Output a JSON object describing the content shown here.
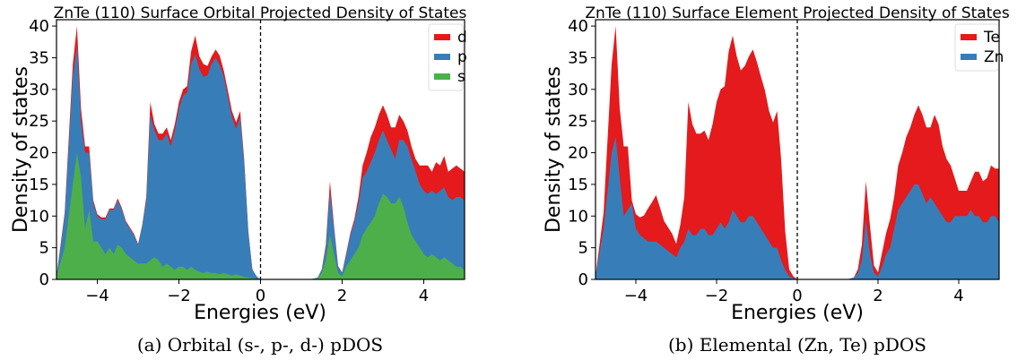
{
  "colors": {
    "d": "#e41a1c",
    "p": "#377eb8",
    "s": "#4daf4a"
  },
  "chart_data": [
    {
      "type": "area",
      "stacked": true,
      "title": "ZnTe (110) Surface Orbital Projected Density of States",
      "caption": "(a) Orbital (s-, p-, d-) pDOS",
      "xlabel": "Energies (eV)",
      "ylabel": "Density of states",
      "xlim": [
        -5,
        5
      ],
      "ylim": [
        0,
        41
      ],
      "xticks": [
        -4,
        -2,
        0,
        2,
        4
      ],
      "xtick_labels": [
        "−4",
        "−2",
        "0",
        "2",
        "4"
      ],
      "yticks": [
        0,
        5,
        10,
        15,
        20,
        25,
        30,
        35,
        40
      ],
      "fermi_level": 0,
      "legend_position": "top-right",
      "x": [
        -5,
        -4.8,
        -4.6,
        -4.5,
        -4.4,
        -4.3,
        -4.2,
        -4.1,
        -4,
        -3.9,
        -3.8,
        -3.7,
        -3.6,
        -3.5,
        -3.4,
        -3.3,
        -3.2,
        -3.1,
        -3,
        -2.9,
        -2.8,
        -2.7,
        -2.6,
        -2.5,
        -2.4,
        -2.3,
        -2.2,
        -2.1,
        -2,
        -1.9,
        -1.8,
        -1.7,
        -1.6,
        -1.5,
        -1.4,
        -1.3,
        -1.2,
        -1.1,
        -1,
        -0.9,
        -0.8,
        -0.7,
        -0.6,
        -0.5,
        -0.4,
        -0.3,
        -0.2,
        -0.1,
        0,
        0.2,
        0.4,
        0.6,
        0.8,
        1,
        1.1,
        1.2,
        1.3,
        1.4,
        1.5,
        1.6,
        1.7,
        1.8,
        1.9,
        2,
        2.1,
        2.2,
        2.3,
        2.4,
        2.5,
        2.6,
        2.7,
        2.8,
        2.9,
        3,
        3.1,
        3.2,
        3.3,
        3.4,
        3.5,
        3.6,
        3.7,
        3.8,
        3.9,
        4,
        4.1,
        4.2,
        4.3,
        4.4,
        4.5,
        4.6,
        4.7,
        4.8,
        4.9,
        5
      ],
      "series": [
        {
          "name": "s",
          "values": [
            0.5,
            5,
            15,
            20,
            16,
            8,
            11,
            6,
            6,
            5,
            4,
            5,
            4,
            5.5,
            5,
            4,
            3.5,
            3,
            2.5,
            2.5,
            2.5,
            3,
            3.5,
            3,
            2,
            2.5,
            2,
            1.5,
            2,
            2,
            1.5,
            2,
            1.5,
            1.2,
            1,
            1.2,
            1,
            1,
            0.8,
            1,
            0.8,
            0.6,
            0.8,
            0.6,
            0.4,
            0.3,
            0.2,
            0.1,
            0,
            0,
            0,
            0,
            0,
            0,
            0,
            0,
            0.1,
            0.2,
            1,
            3,
            7,
            4,
            1,
            0.5,
            2,
            3,
            4,
            5,
            7,
            8,
            9,
            10,
            12,
            13.5,
            13,
            12,
            12,
            13,
            11.5,
            9,
            7,
            6,
            5,
            4,
            3.5,
            4,
            3.5,
            3,
            3.5,
            3,
            2.5,
            2,
            2,
            1.5
          ]
        },
        {
          "name": "p",
          "values": [
            0,
            5,
            17,
            17,
            9,
            12,
            9,
            6,
            4,
            4.5,
            5.5,
            6,
            7,
            7,
            6,
            5,
            4.5,
            4,
            3,
            6,
            10,
            23,
            20,
            19,
            20,
            20.5,
            19,
            22,
            25,
            27,
            28,
            32,
            34,
            32,
            31,
            31,
            33,
            34,
            33,
            31,
            28,
            25,
            23,
            25,
            18,
            7,
            1.3,
            0.4,
            0,
            0,
            0,
            0,
            0,
            0,
            0,
            0,
            0,
            0.1,
            0.5,
            2,
            7,
            4,
            1,
            0.5,
            2,
            4,
            5,
            7,
            9,
            9,
            9.5,
            10,
            10,
            10,
            9,
            8.5,
            7,
            9,
            10.5,
            12,
            12,
            11,
            10,
            10,
            10,
            10,
            10,
            11,
            11,
            10,
            10,
            11,
            11,
            11
          ]
        },
        {
          "name": "d",
          "values": [
            0,
            0.5,
            2,
            3,
            2,
            1,
            1,
            0.5,
            0.3,
            0.3,
            0.3,
            0.2,
            0.2,
            0.3,
            0.3,
            0.2,
            0.2,
            0.2,
            0.1,
            0.1,
            0.5,
            2,
            1,
            1,
            1,
            1,
            1,
            1,
            1,
            1,
            1,
            2,
            3,
            2,
            2,
            1.5,
            1.2,
            1.3,
            1.5,
            1,
            1,
            1,
            1,
            1,
            0.5,
            0.3,
            0.1,
            0,
            0,
            0,
            0,
            0,
            0,
            0,
            0,
            0,
            0,
            0,
            0.1,
            0.5,
            1.5,
            0.5,
            0.1,
            0.1,
            0.2,
            0.3,
            0.5,
            1,
            2,
            3,
            4,
            4,
            4,
            4,
            4,
            3.5,
            5,
            4,
            3,
            2.5,
            2,
            2,
            3,
            4,
            4.5,
            3,
            5,
            4,
            5,
            4,
            5,
            5,
            4.5,
            4.5
          ]
        }
      ]
    },
    {
      "type": "area",
      "stacked": true,
      "title": "ZnTe (110) Surface Element Projected Density of States",
      "caption": "(b) Elemental (Zn, Te) pDOS",
      "xlabel": "Energies (eV)",
      "ylabel": "Density of states",
      "xlim": [
        -5,
        5
      ],
      "ylim": [
        0,
        41
      ],
      "xticks": [
        -4,
        -2,
        0,
        2,
        4
      ],
      "xtick_labels": [
        "−4",
        "−2",
        "0",
        "2",
        "4"
      ],
      "yticks": [
        0,
        5,
        10,
        15,
        20,
        25,
        30,
        35,
        40
      ],
      "fermi_level": 0,
      "legend_position": "top-right",
      "x": [
        -5,
        -4.8,
        -4.6,
        -4.5,
        -4.4,
        -4.3,
        -4.2,
        -4.1,
        -4,
        -3.9,
        -3.8,
        -3.7,
        -3.6,
        -3.5,
        -3.4,
        -3.3,
        -3.2,
        -3.1,
        -3,
        -2.9,
        -2.8,
        -2.7,
        -2.6,
        -2.5,
        -2.4,
        -2.3,
        -2.2,
        -2.1,
        -2,
        -1.9,
        -1.8,
        -1.7,
        -1.6,
        -1.5,
        -1.4,
        -1.3,
        -1.2,
        -1.1,
        -1,
        -0.9,
        -0.8,
        -0.7,
        -0.6,
        -0.5,
        -0.4,
        -0.3,
        -0.2,
        -0.1,
        0,
        0.2,
        0.4,
        0.6,
        0.8,
        1,
        1.1,
        1.2,
        1.3,
        1.4,
        1.5,
        1.6,
        1.7,
        1.8,
        1.9,
        2,
        2.1,
        2.2,
        2.3,
        2.4,
        2.5,
        2.6,
        2.7,
        2.8,
        2.9,
        3,
        3.1,
        3.2,
        3.3,
        3.4,
        3.5,
        3.6,
        3.7,
        3.8,
        3.9,
        4,
        4.1,
        4.2,
        4.3,
        4.4,
        4.5,
        4.6,
        4.7,
        4.8,
        4.9,
        5
      ],
      "series": [
        {
          "name": "Zn",
          "values": [
            0.5,
            8,
            20,
            22.5,
            16,
            10,
            11,
            12,
            8,
            7,
            6.5,
            6,
            6,
            6,
            5.5,
            5,
            4.5,
            4,
            3.5,
            5,
            6,
            8,
            7,
            7,
            8,
            8,
            7,
            7,
            8,
            9,
            8,
            9,
            11,
            10,
            9,
            9,
            10,
            10,
            9,
            8,
            7,
            6,
            5,
            5,
            3,
            1.5,
            0.5,
            0.2,
            0,
            0,
            0,
            0,
            0,
            0,
            0,
            0,
            0.1,
            0.3,
            1,
            3,
            9.5,
            4,
            1,
            0.5,
            2,
            4,
            5,
            8,
            11,
            12,
            13,
            14,
            15,
            15,
            13.5,
            12,
            13,
            12,
            11,
            10,
            9,
            9,
            10,
            10,
            10,
            10,
            11,
            10,
            10,
            9,
            9,
            10,
            10,
            9
          ]
        },
        {
          "name": "Te",
          "values": [
            0,
            2.5,
            14,
            17.5,
            11,
            11,
            10,
            0.5,
            2.3,
            2.8,
            3.6,
            5.2,
            6.2,
            7.3,
            5.8,
            4.2,
            3.7,
            3.2,
            2.1,
            3.6,
            7,
            20,
            17.5,
            16,
            15,
            15.5,
            15,
            17.5,
            20,
            21,
            22.5,
            27,
            27.5,
            25.2,
            24,
            24.7,
            25.2,
            26.3,
            25.3,
            24,
            22.8,
            20.6,
            19.8,
            21.6,
            15.9,
            6.1,
            1.1,
            0.3,
            0,
            0,
            0,
            0,
            0,
            0,
            0,
            0,
            0,
            0,
            0.6,
            2.5,
            6,
            4.5,
            1.2,
            0.6,
            2.2,
            3.3,
            4.5,
            5,
            7,
            8,
            9.5,
            10,
            11,
            12.5,
            12.5,
            12,
            11,
            14,
            13.5,
            11,
            10,
            9,
            6,
            4,
            4,
            4,
            4.5,
            7,
            7,
            6.5,
            7,
            8,
            7.5,
            8.5
          ]
        }
      ]
    }
  ]
}
